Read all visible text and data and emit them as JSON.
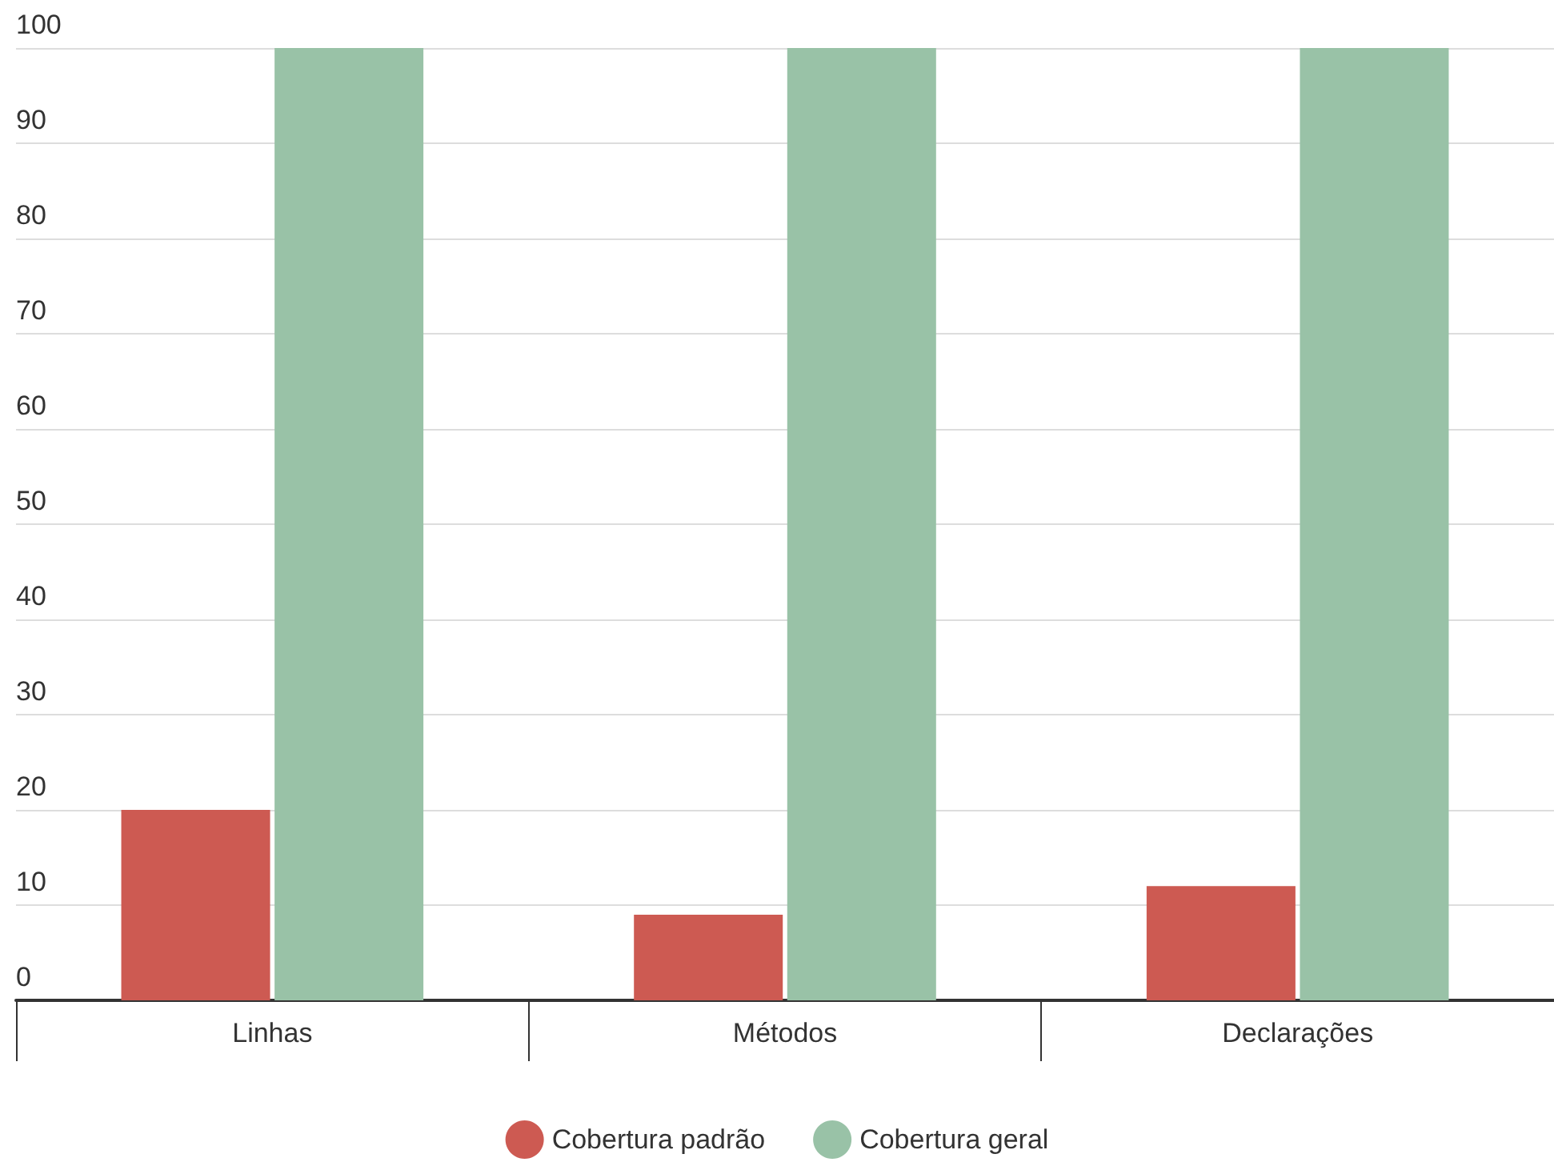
{
  "chart_data": {
    "type": "bar",
    "categories": [
      "Linhas",
      "Métodos",
      "Declarações"
    ],
    "series": [
      {
        "name": "Cobertura padrão",
        "color": "#cd5a52",
        "values": [
          20,
          9,
          12
        ]
      },
      {
        "name": "Cobertura geral",
        "color": "#99c2a7",
        "values": [
          100,
          100,
          100
        ]
      }
    ],
    "ylim": [
      0,
      100
    ],
    "yticks": [
      0,
      10,
      20,
      30,
      40,
      50,
      60,
      70,
      80,
      90,
      100
    ],
    "grid": "y",
    "legend": "bottom"
  }
}
